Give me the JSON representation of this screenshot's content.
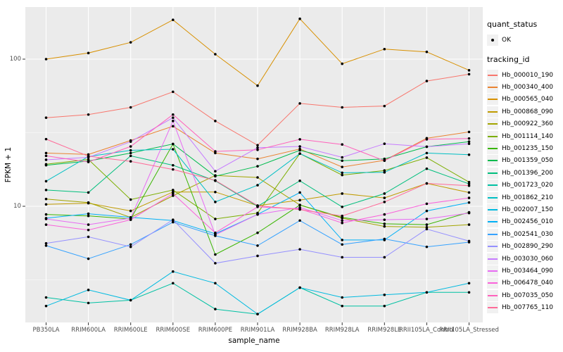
{
  "figure": {
    "background": "#FFFFFF",
    "panel_background": "#EBEBEB",
    "gridline_color": "#FFFFFF",
    "tick_color": "#333333",
    "point_color": "#000000"
  },
  "axes": {
    "x_title": "sample_name",
    "y_title": "FPKM + 1",
    "y_tick_labels": [
      "100",
      "10"
    ],
    "y_tick_values": [
      100,
      10
    ]
  },
  "legend": {
    "quant_status_title": "quant_status",
    "quant_status_items": [
      {
        "label": "OK",
        "symbol": "point"
      }
    ],
    "tracking_id_title": "tracking_id"
  },
  "chart_data": {
    "type": "line",
    "x_categories": [
      "PB350LA",
      "RRIM600LA",
      "RRIM600LE",
      "RRIM600SE",
      "RRIM600PE",
      "RRIM901LA",
      "RRIM928BA",
      "RRIM928LA",
      "RRIM928LE",
      "RRII105LA_Control",
      "RRII105LA_Stressed"
    ],
    "xlabel": "sample_name",
    "ylabel": "FPKM + 1",
    "y_scale": "log10",
    "y_ticks": [
      10,
      100
    ],
    "y_minor_ticks": [
      3.1623,
      31.623
    ],
    "ylim": [
      1.62,
      226
    ],
    "grid": "on",
    "legend_position": "right",
    "point_marker": "black-dot",
    "series": [
      {
        "name": "Hb_000010_190",
        "color": "#F8766D",
        "values": [
          40,
          42,
          47,
          60,
          38,
          26,
          50,
          47,
          48,
          71,
          79
        ]
      },
      {
        "name": "Hb_000340_400",
        "color": "#EA8331",
        "values": [
          23,
          22.5,
          28,
          35,
          23,
          21,
          24.5,
          18.5,
          20.5,
          29,
          32
        ]
      },
      {
        "name": "Hb_000565_040",
        "color": "#D89000",
        "values": [
          100,
          110,
          130,
          185,
          108,
          66,
          188,
          93,
          117,
          112,
          84
        ]
      },
      {
        "name": "Hb_000868_090",
        "color": "#C09B00",
        "values": [
          10.3,
          10.5,
          9.3,
          12.5,
          12.5,
          10.1,
          11,
          12.2,
          11.4,
          14.3,
          12.4
        ]
      },
      {
        "name": "Hb_000922_360",
        "color": "#A3A500",
        "values": [
          11.2,
          10.6,
          8.4,
          11.8,
          16.2,
          15.7,
          10.2,
          8.3,
          7.3,
          7.2,
          7.5
        ]
      },
      {
        "name": "Hb_001114_140",
        "color": "#7CAE00",
        "values": [
          19.3,
          20.8,
          11.1,
          12.9,
          8.2,
          9,
          22.8,
          16.3,
          17.5,
          21.4,
          14.6
        ]
      },
      {
        "name": "Hb_001235_150",
        "color": "#39B600",
        "values": [
          8.8,
          8.6,
          8.2,
          26.5,
          4.7,
          6.6,
          10.2,
          8.4,
          7.6,
          7.5,
          9.1
        ]
      },
      {
        "name": "Hb_001359_050",
        "color": "#00BB4E",
        "values": [
          19,
          20.3,
          23,
          26.5,
          16,
          18.7,
          24,
          20.4,
          21,
          25.4,
          27.5
        ]
      },
      {
        "name": "Hb_001396_200",
        "color": "#00BF7D",
        "values": [
          12.9,
          12.4,
          22,
          19,
          14.9,
          10,
          14.9,
          9.9,
          12.2,
          18,
          14.2
        ]
      },
      {
        "name": "Hb_001723_020",
        "color": "#00C1A3",
        "values": [
          2.4,
          2.2,
          2.3,
          3,
          2,
          1.85,
          2.8,
          2.1,
          2.1,
          2.6,
          2.6
        ]
      },
      {
        "name": "Hb_001862_210",
        "color": "#00BFC4",
        "values": [
          14.8,
          21.8,
          24,
          24.4,
          10.7,
          13.9,
          22.8,
          16.9,
          17,
          23,
          22.4
        ]
      },
      {
        "name": "Hb_002007_150",
        "color": "#00BAE0",
        "values": [
          2.1,
          2.7,
          2.3,
          3.6,
          3,
          1.85,
          2.8,
          2.4,
          2.5,
          2.6,
          3
        ]
      },
      {
        "name": "Hb_002456_010",
        "color": "#00B0F6",
        "values": [
          8.3,
          8.9,
          8.4,
          8,
          6.5,
          8.8,
          12.4,
          5.9,
          5.9,
          9.3,
          10.6
        ]
      },
      {
        "name": "Hb_002541_030",
        "color": "#35A2FF",
        "values": [
          5.4,
          4.4,
          5.5,
          7.8,
          6.3,
          5.4,
          8,
          5.5,
          6,
          5.3,
          5.7
        ]
      },
      {
        "name": "Hb_002890_290",
        "color": "#9590FF",
        "values": [
          5.6,
          6.2,
          5.3,
          8.1,
          4.1,
          4.6,
          5.1,
          4.5,
          4.5,
          7,
          5.8
        ]
      },
      {
        "name": "Hb_003030_060",
        "color": "#C77CFF",
        "values": [
          20.7,
          21.5,
          27.5,
          40,
          17.3,
          25,
          25.5,
          21.5,
          26.6,
          25.4,
          26.6
        ]
      },
      {
        "name": "Hb_003464_090",
        "color": "#E76BF3",
        "values": [
          8.2,
          7.5,
          8.3,
          38,
          6.4,
          8.8,
          9.8,
          8,
          8.1,
          8.2,
          9
        ]
      },
      {
        "name": "Hb_006478_040",
        "color": "#FA62DB",
        "values": [
          7.5,
          6.9,
          8.1,
          12.2,
          6.6,
          9.9,
          9.6,
          7.7,
          8.8,
          10.4,
          11.4
        ]
      },
      {
        "name": "Hb_007035_050",
        "color": "#FF62BC",
        "values": [
          22,
          20,
          25.5,
          42,
          23.6,
          24.2,
          28.5,
          26.3,
          20.4,
          28.5,
          28.9
        ]
      },
      {
        "name": "Hb_007765_110",
        "color": "#FF6A98",
        "values": [
          28.6,
          21.9,
          20.2,
          17.8,
          15,
          10.1,
          9.5,
          8.6,
          10.7,
          14.3,
          13.8
        ]
      }
    ]
  }
}
